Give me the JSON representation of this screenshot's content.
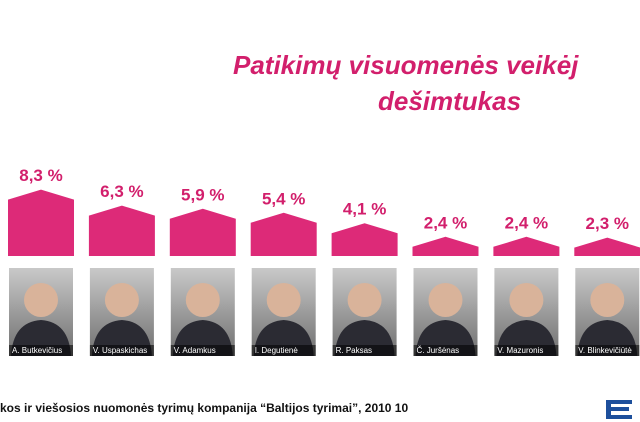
{
  "chart_data": {
    "type": "bar",
    "title_lines": [
      "Patikimų visuomenės veikėj",
      "dešimtukas"
    ],
    "categories": [
      "A. Butkevičius",
      "V. Uspaskichas",
      "V. Adamkus",
      "I. Degutienė",
      "R. Paksas",
      "Č. Juršėnas",
      "V. Mazuronis",
      "V. Blinkevičiūtė"
    ],
    "values": [
      8.3,
      6.3,
      5.9,
      5.4,
      4.1,
      2.4,
      2.4,
      2.3
    ],
    "value_labels": [
      "8,3 %",
      "6,3 %",
      "5,9 %",
      "5,4 %",
      "4,1 %",
      "2,4 %",
      "2,4 %",
      "2,3 %"
    ],
    "color": "#dd2a78",
    "source": "kos ir viešosios nuomonės tyrimų kompanija “Baltijos tyrimai”, 2010 10"
  }
}
